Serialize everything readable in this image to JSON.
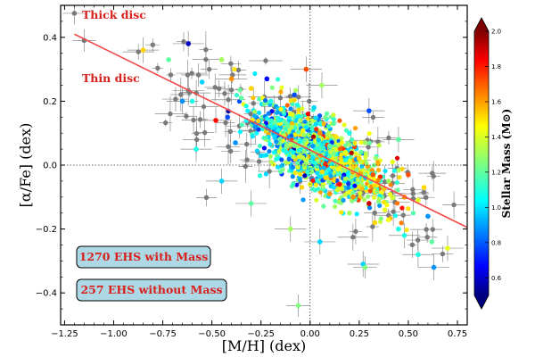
{
  "chart_data": {
    "type": "scatter",
    "xlabel": "[M/H] (dex)",
    "ylabel": "[α/Fe] (dex)",
    "xlim": [
      -1.27,
      0.8
    ],
    "ylim": [
      -0.5,
      0.5
    ],
    "x_ticks": [
      -1.25,
      -1.0,
      -0.75,
      -0.5,
      -0.25,
      0.0,
      0.25,
      0.5,
      0.75
    ],
    "x_tick_labels": [
      "−1.25",
      "−1.00",
      "−0.75",
      "−0.50",
      "−0.25",
      "0.00",
      "0.25",
      "0.50",
      "0.75"
    ],
    "y_ticks": [
      -0.4,
      -0.2,
      0.0,
      0.2,
      0.4
    ],
    "y_tick_labels": [
      "−0.4",
      "−0.2",
      "0.0",
      "0.2",
      "0.4"
    ],
    "reference_lines": {
      "x": 0.0,
      "y": 0.0,
      "style": "dotted"
    },
    "fit_line": {
      "x": [
        -1.2,
        0.8
      ],
      "y": [
        0.41,
        -0.195
      ],
      "color": "#f24a4a"
    },
    "colorbar": {
      "label": "Stellar Mass (M⊙)",
      "range": [
        0.5,
        2.0
      ],
      "ticks": [
        0.6,
        0.8,
        1.0,
        1.2,
        1.4,
        1.6,
        1.8,
        2.0
      ],
      "tick_labels": [
        "0.6",
        "0.8",
        "1.0",
        "1.2",
        "1.4",
        "1.6",
        "1.8",
        "2.0"
      ],
      "colormap": "jet"
    },
    "annotations": [
      {
        "text": "Thick disc",
        "color": "#d8201c"
      },
      {
        "text": "Thin disc",
        "color": "#d8201c"
      }
    ],
    "legend_boxes": [
      {
        "text": "1270 EHS with Mass",
        "bg": "#add8e6"
      },
      {
        "text": "257 EHS without Mass",
        "bg": "#add8e6"
      }
    ],
    "trend": {
      "slope": -0.303,
      "intercept": 0.046
    },
    "series": [
      {
        "points": [
          [
            -0.72,
            0.33
          ],
          [
            -0.45,
            0.33
          ],
          [
            -0.3,
            0.24
          ],
          [
            -0.2,
            0.2
          ],
          [
            -0.1,
            0.16
          ],
          [
            -0.05,
            0.14
          ],
          [
            0.05,
            0.1
          ],
          [
            0.1,
            0.06
          ],
          [
            0.18,
            0.04
          ],
          [
            0.25,
            0.02
          ],
          [
            0.32,
            -0.03
          ],
          [
            0.4,
            -0.05
          ],
          [
            0.48,
            -0.1
          ],
          [
            0.55,
            -0.11
          ],
          [
            -0.35,
            0.21
          ],
          [
            -0.28,
            0.12
          ],
          [
            -0.18,
            0.09
          ],
          [
            -0.12,
            0.04
          ],
          [
            -0.03,
            0.0
          ],
          [
            0.08,
            -0.04
          ],
          [
            0.15,
            -0.06
          ],
          [
            0.22,
            -0.1
          ],
          [
            0.3,
            -0.12
          ],
          [
            0.38,
            -0.14
          ],
          [
            -0.22,
            0.27
          ],
          [
            -0.08,
            0.22
          ],
          [
            0.02,
            0.18
          ],
          [
            0.12,
            0.13
          ],
          [
            0.2,
            0.1
          ],
          [
            0.28,
            0.07
          ],
          [
            -0.42,
            0.15
          ],
          [
            -0.38,
            0.07
          ],
          [
            -0.25,
            0.03
          ],
          [
            -0.15,
            -0.02
          ],
          [
            0.0,
            -0.06
          ],
          [
            0.1,
            -0.09
          ],
          [
            0.2,
            -0.15
          ],
          [
            0.33,
            -0.18
          ],
          [
            0.45,
            -0.2
          ],
          [
            0.6,
            -0.16
          ],
          [
            0.62,
            -0.24
          ],
          [
            -0.55,
            0.26
          ],
          [
            -0.6,
            0.2
          ],
          [
            0.42,
            0.01
          ],
          [
            0.5,
            -0.03
          ],
          [
            0.58,
            -0.07
          ]
        ],
        "color_values": [
          1.2,
          1.3,
          1.5,
          1.1,
          1.4,
          1.3,
          1.6,
          1.2,
          1.4,
          1.5,
          1.7,
          1.3,
          1.6,
          1.4,
          1.2,
          0.9,
          1.0,
          1.1,
          1.3,
          1.5,
          1.8,
          1.6,
          1.9,
          1.4,
          0.7,
          0.8,
          1.0,
          1.2,
          1.1,
          1.3,
          0.8,
          0.9,
          1.0,
          1.2,
          1.4,
          1.6,
          1.3,
          1.5,
          1.1,
          0.9,
          1.2,
          1.0,
          1.1,
          1.4,
          1.7,
          1.5
        ]
      },
      {
        "points": [
          [
            -0.62,
            0.38
          ],
          [
            -0.85,
            0.36
          ],
          [
            -0.65,
            0.2
          ],
          [
            -0.48,
            0.14
          ],
          [
            -0.4,
            0.27
          ],
          [
            -0.58,
            0.05
          ],
          [
            -0.45,
            -0.05
          ],
          [
            -0.02,
            0.3
          ],
          [
            0.06,
            0.25
          ],
          [
            0.3,
            0.17
          ],
          [
            0.45,
            0.08
          ],
          [
            0.55,
            -0.28
          ],
          [
            0.63,
            -0.32
          ],
          [
            0.27,
            -0.31
          ],
          [
            -0.3,
            -0.12
          ],
          [
            -0.1,
            -0.2
          ],
          [
            0.05,
            -0.24
          ],
          [
            0.7,
            -0.26
          ],
          [
            0.48,
            -0.22
          ]
        ],
        "color_values": [
          0.6,
          1.5,
          0.9,
          1.8,
          1.6,
          1.1,
          1.0,
          1.7,
          1.3,
          0.8,
          1.2,
          1.1,
          0.9,
          1.0,
          1.2,
          1.3,
          1.0,
          1.4,
          1.1
        ]
      }
    ]
  }
}
